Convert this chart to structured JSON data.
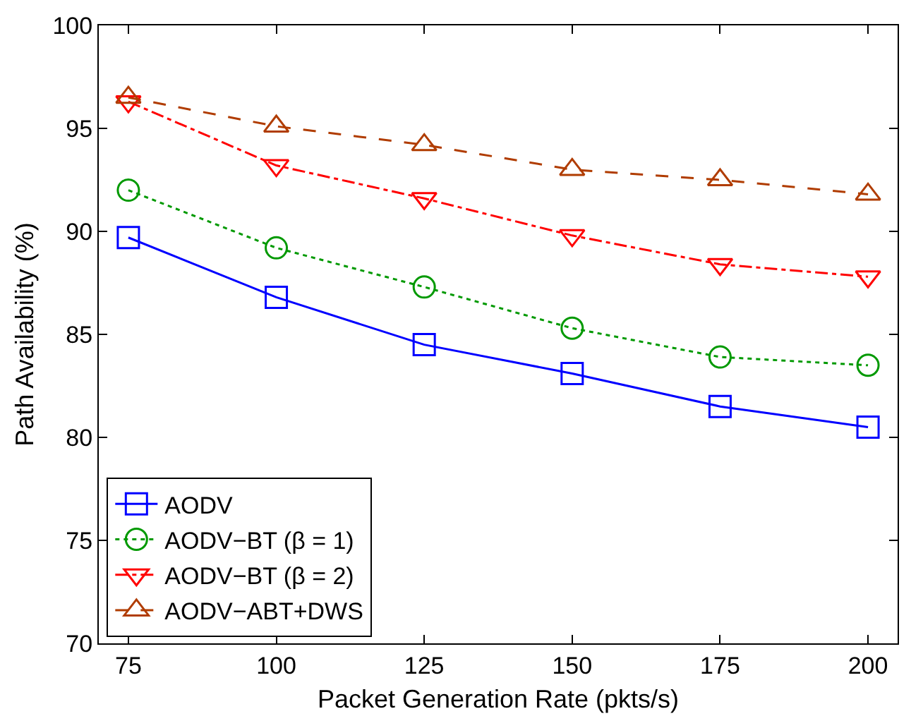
{
  "chart_data": {
    "type": "line",
    "xlabel": "Packet Generation Rate (pkts/s)",
    "ylabel": "Path Availability (%)",
    "x": [
      75,
      100,
      125,
      150,
      175,
      200
    ],
    "xlim": [
      70,
      205
    ],
    "xticks": [
      75,
      100,
      125,
      150,
      175,
      200
    ],
    "ylim": [
      70,
      100
    ],
    "yticks": [
      70,
      75,
      80,
      85,
      90,
      95,
      100
    ],
    "grid": false,
    "legend": "bottom left",
    "series": [
      {
        "name": "AODV",
        "color": "#0000ff",
        "marker": "square",
        "line_style": "solid",
        "values": [
          89.7,
          86.8,
          84.5,
          83.1,
          81.5,
          80.5
        ]
      },
      {
        "name": "AODV−BT (β = 1)",
        "color": "#009900",
        "marker": "circle",
        "line_style": "dotted",
        "values": [
          92.0,
          89.2,
          87.3,
          85.3,
          83.9,
          83.5
        ]
      },
      {
        "name": "AODV−BT (β = 2)",
        "color": "#ff0000",
        "marker": "triangle-down",
        "line_style": "dashdot",
        "values": [
          96.3,
          93.2,
          91.6,
          89.8,
          88.4,
          87.8
        ]
      },
      {
        "name": "AODV−ABT+DWS",
        "color": "#b03c00",
        "marker": "triangle",
        "line_style": "dashed",
        "values": [
          96.5,
          95.1,
          94.2,
          93.0,
          92.5,
          91.8
        ]
      }
    ]
  }
}
